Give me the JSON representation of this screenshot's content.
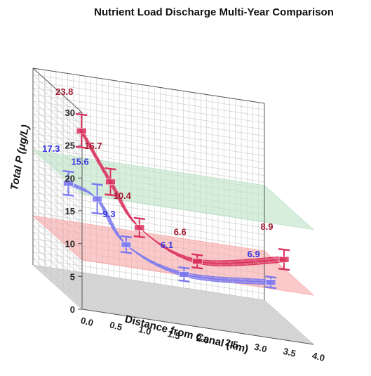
{
  "chart_data": {
    "type": "line",
    "title": "Nutrient Load Discharge Multi-Year Comparison",
    "xlabel": "Distance from Canal (km)",
    "ylabel": "Total P (μg/L)",
    "xlim": [
      0.0,
      4.0
    ],
    "ylim": [
      0,
      30
    ],
    "x_ticks": [
      "0.0",
      "0.5",
      "1.0",
      "1.5",
      "2.0",
      "2.5",
      "3.0",
      "3.5",
      "4.0"
    ],
    "y_ticks": [
      "0",
      "5",
      "10",
      "15",
      "20",
      "25",
      "30"
    ],
    "grid": true,
    "bands": [
      {
        "from": 15,
        "to": 20,
        "color": "#bfe3c8"
      },
      {
        "from": 5,
        "to": 10,
        "color": "#f7a8a8"
      }
    ],
    "series": [
      {
        "color": "#d9305c",
        "x": [
          0.5,
          1.0,
          1.5,
          2.5,
          4.0
        ],
        "values": [
          23.8,
          16.7,
          10.4,
          6.6,
          8.9
        ],
        "labels": [
          "23.8",
          "16.7",
          "10.4",
          "6.6",
          "8.9"
        ],
        "errors": [
          2.5,
          2.0,
          1.4,
          1.0,
          1.5
        ]
      },
      {
        "color": "#7a78f0",
        "x": [
          0.0,
          0.5,
          1.0,
          2.0,
          3.5
        ],
        "values": [
          17.3,
          15.6,
          9.3,
          6.1,
          6.9
        ],
        "labels": [
          "17.3",
          "15.6",
          "9.3",
          "6.1",
          "6.9"
        ],
        "errors": [
          1.8,
          2.2,
          1.2,
          1.0,
          0.8
        ]
      }
    ]
  }
}
